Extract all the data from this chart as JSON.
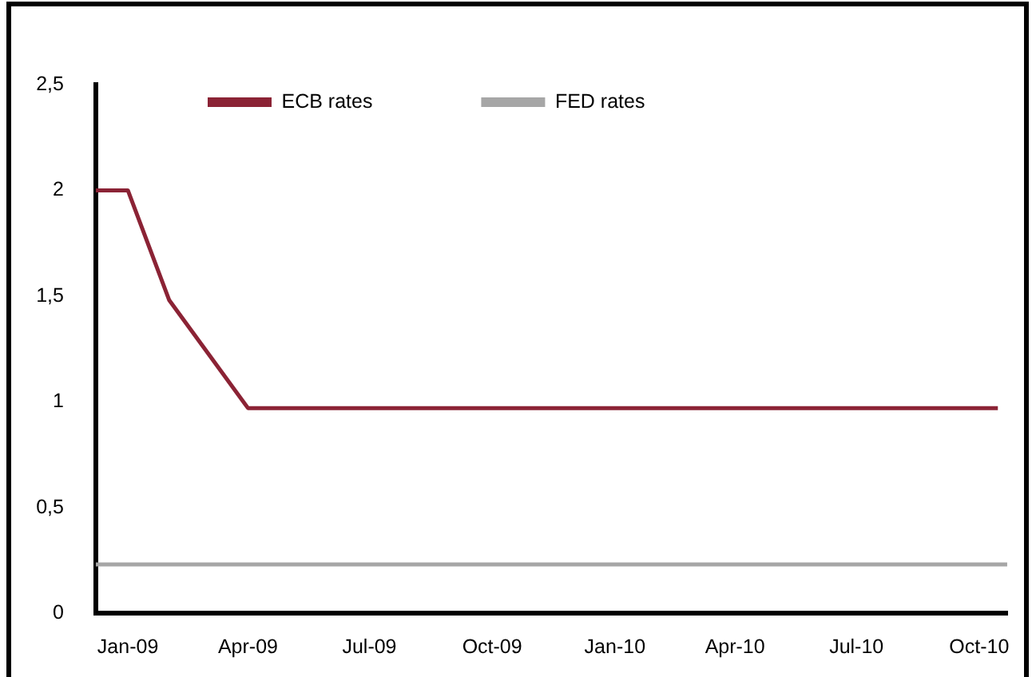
{
  "chart_data": {
    "type": "line",
    "xlim": [
      "2008-12-08",
      "2010-10-22"
    ],
    "xticks": [
      {
        "value": "2009-01",
        "label": "Jan-09"
      },
      {
        "value": "2009-04",
        "label": "Apr-09"
      },
      {
        "value": "2009-07",
        "label": "Jul-09"
      },
      {
        "value": "2009-10",
        "label": "Oct-09"
      },
      {
        "value": "2010-01",
        "label": "Jan-10"
      },
      {
        "value": "2010-04",
        "label": "Apr-10"
      },
      {
        "value": "2010-07",
        "label": "Jul-10"
      },
      {
        "value": "2010-10",
        "label": "Oct-10"
      }
    ],
    "ylim": [
      0,
      2.5
    ],
    "yticks": [
      0,
      {
        "value": 0.5,
        "label": "0,5"
      },
      1,
      {
        "value": 1.5,
        "label": "1,5"
      },
      2,
      {
        "value": 2.5,
        "label": "2,5"
      }
    ],
    "series": [
      {
        "name": "ECB rates",
        "color": "#8b2335",
        "x": [
          "2008-12-08",
          "2009-01-01",
          "2009-02-01",
          "2009-04-01",
          "2010-10-15"
        ],
        "values": [
          2,
          2,
          1.48,
          0.97,
          0.97
        ]
      },
      {
        "name": "FED rates",
        "color": "#a6a6a6",
        "x": [
          "2008-12-08",
          "2010-10-22"
        ],
        "values": [
          0.23,
          0.23
        ]
      }
    ],
    "legend": "top left",
    "marker": "none"
  }
}
